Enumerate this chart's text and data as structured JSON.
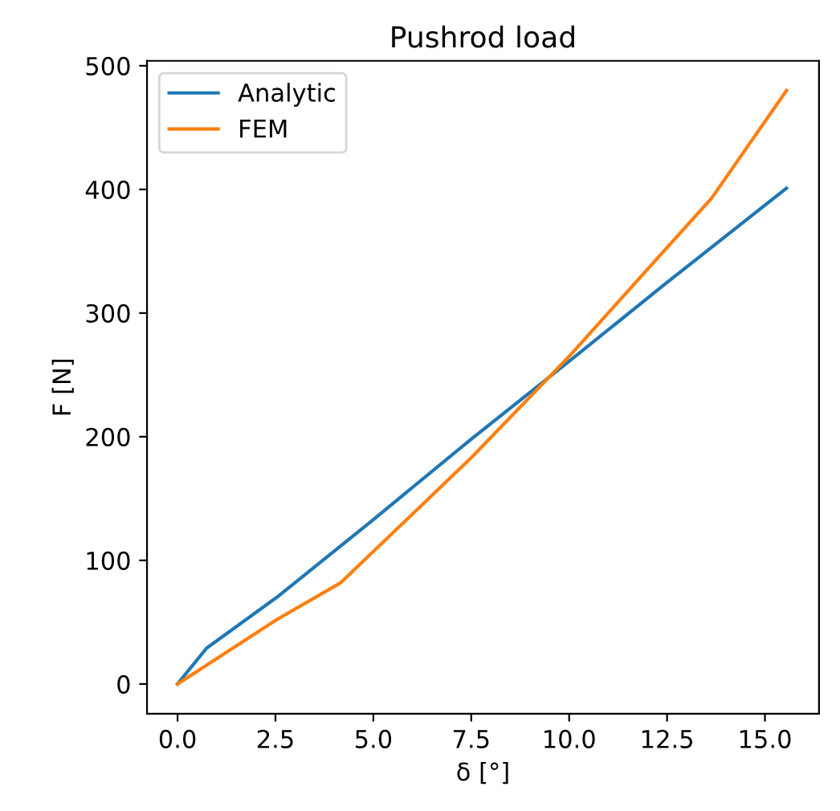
{
  "chart_data": {
    "type": "line",
    "title": "Pushrod load",
    "xlabel": "δ [°]",
    "ylabel": "F [N]",
    "xlim": [
      -0.78,
      16.38
    ],
    "ylim": [
      -24,
      504
    ],
    "xticks": [
      {
        "value": 0,
        "label": "0.0"
      },
      {
        "value": 2.5,
        "label": "2.5"
      },
      {
        "value": 5,
        "label": "5.0"
      },
      {
        "value": 7.5,
        "label": "7.5"
      },
      {
        "value": 10,
        "label": "10.0"
      },
      {
        "value": 12.5,
        "label": "12.5"
      },
      {
        "value": 15,
        "label": "15.0"
      }
    ],
    "yticks": [
      0,
      100,
      200,
      300,
      400,
      500
    ],
    "grid": false,
    "legend": "top left",
    "marker": "none",
    "line_style": "solid",
    "series": [
      {
        "name": "Analytic",
        "color": "#1f77b4",
        "x": [
          0,
          0.74,
          2.53,
          5.0,
          7.5,
          10.0,
          12.47,
          15.55
        ],
        "values": [
          0,
          29,
          70,
          133,
          198,
          261,
          324,
          401
        ]
      },
      {
        "name": "FEM",
        "color": "#ff7f0e",
        "x": [
          0,
          2.53,
          4.17,
          7.5,
          10.0,
          12.47,
          13.64,
          15.55
        ],
        "values": [
          0,
          52,
          82,
          183,
          265,
          352,
          393,
          480
        ]
      }
    ]
  }
}
